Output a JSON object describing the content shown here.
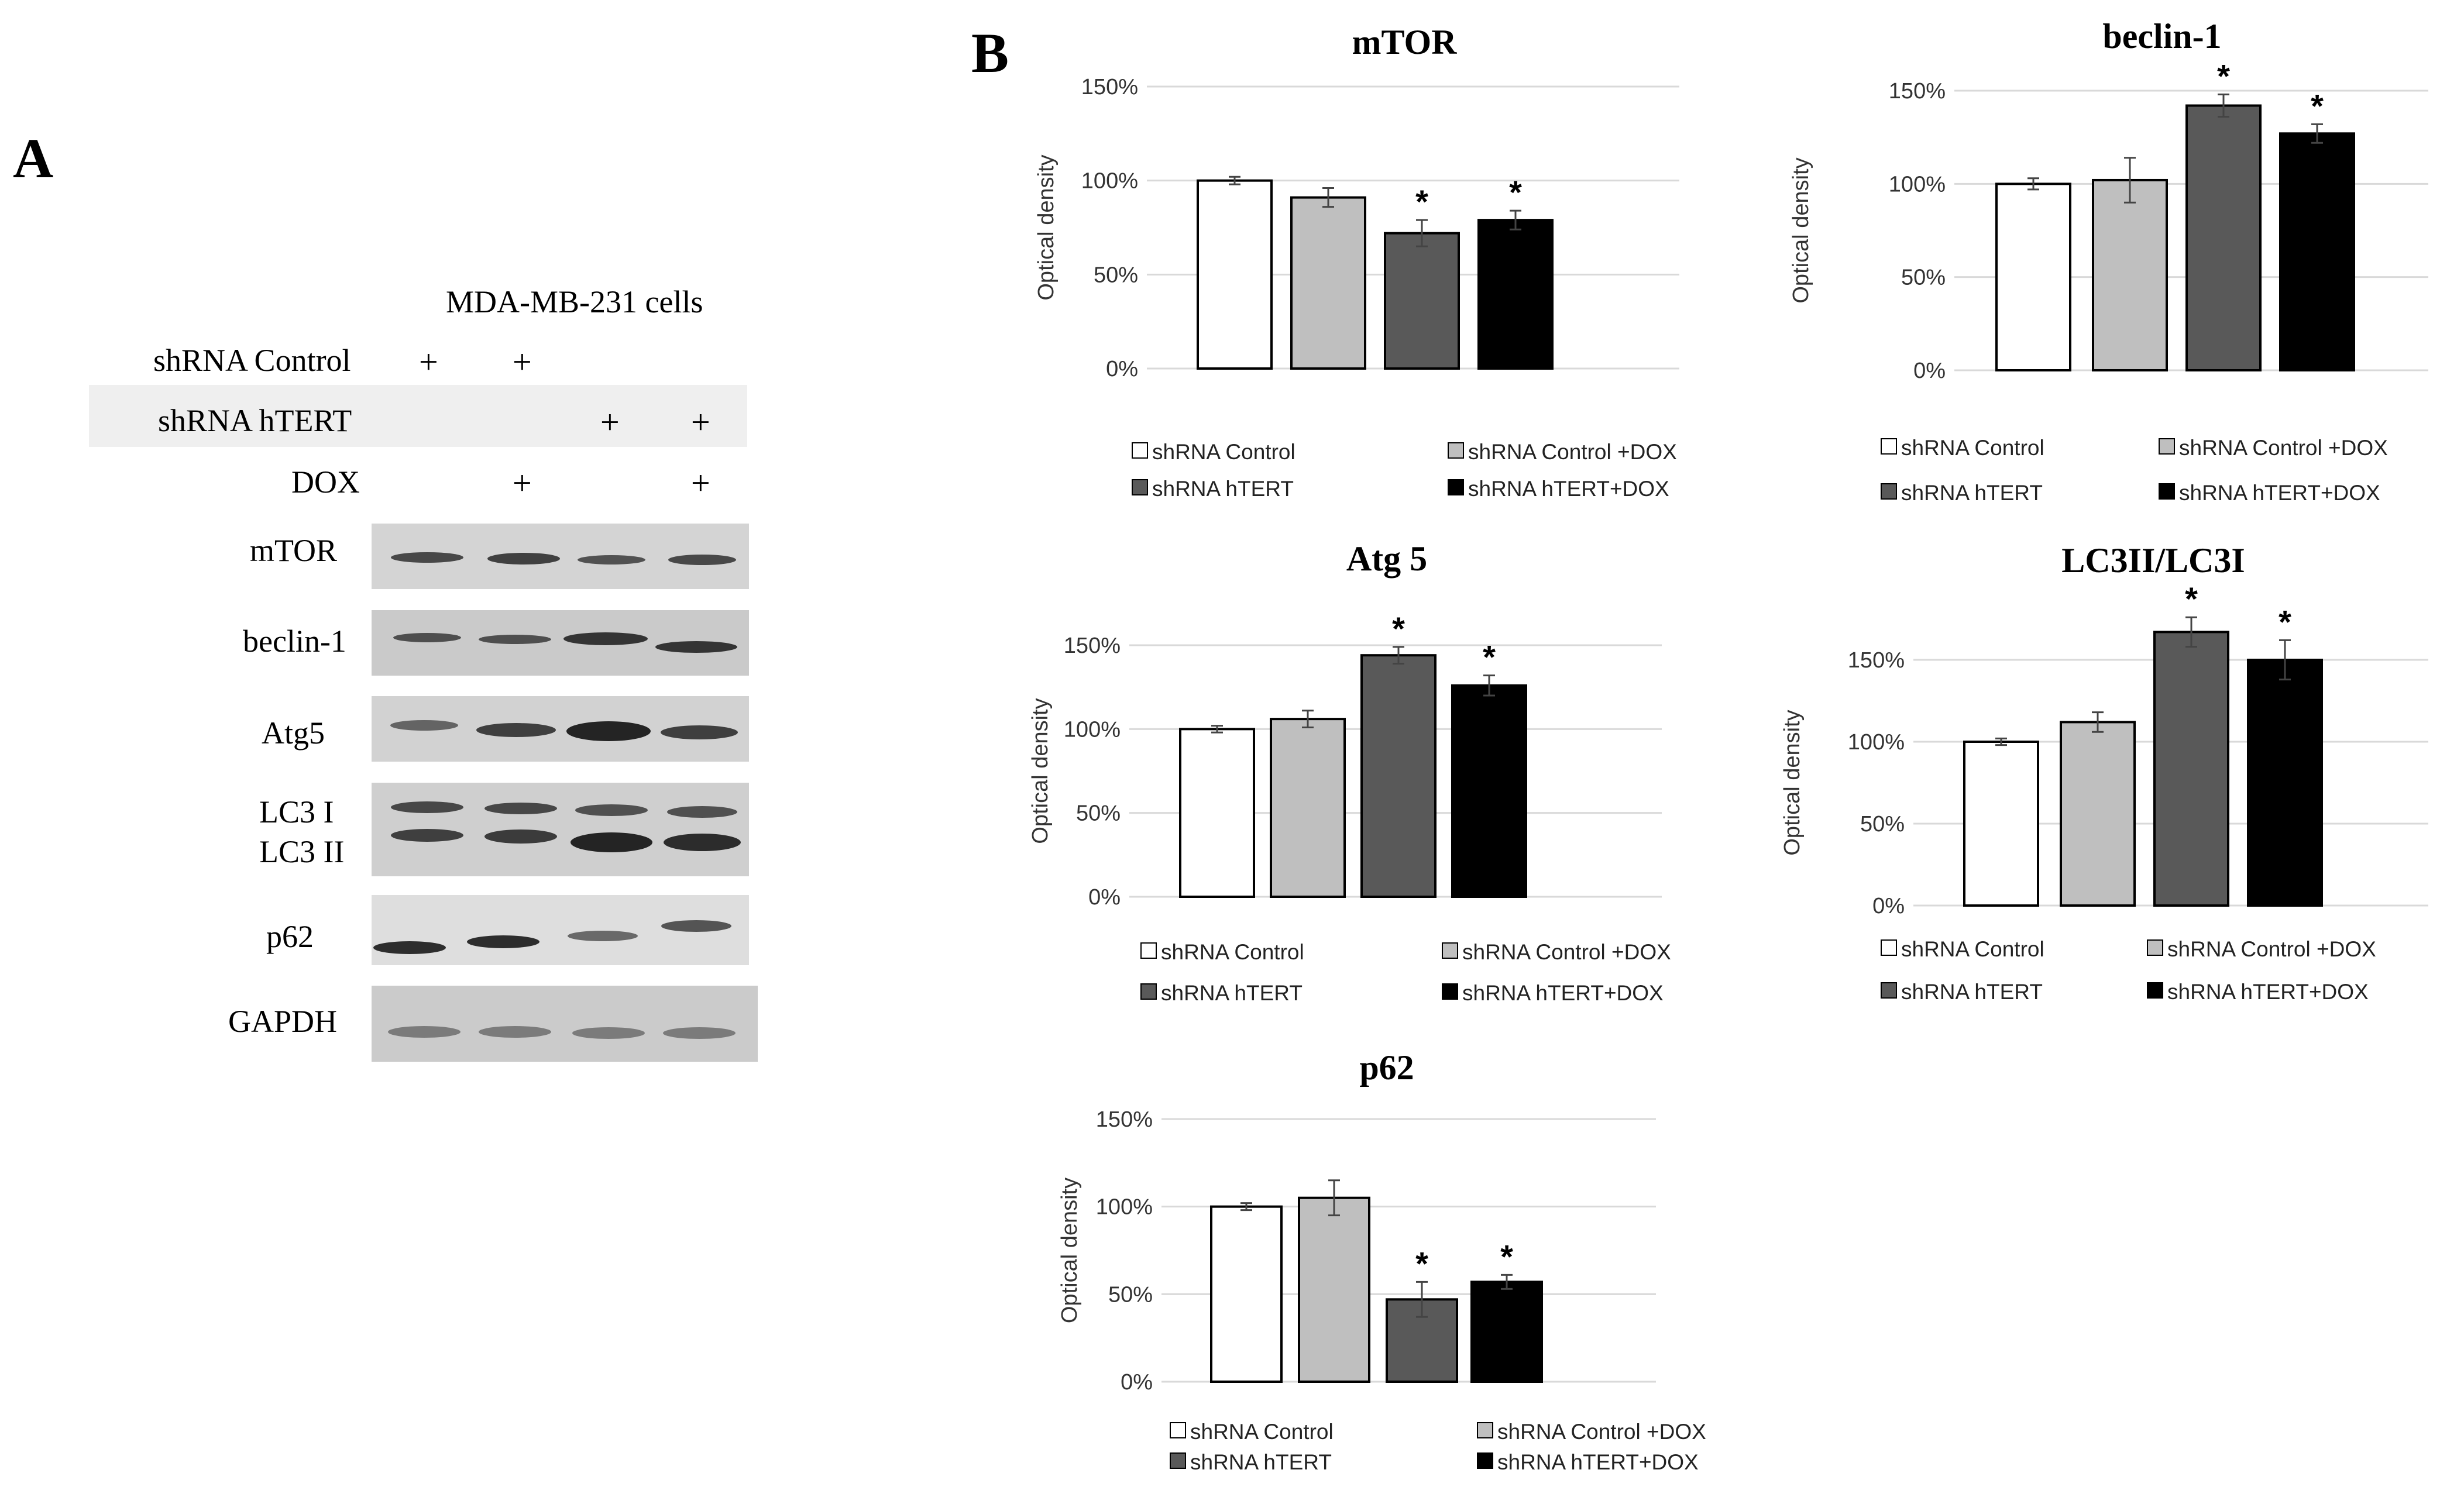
{
  "panel_a": {
    "letter": "A",
    "cell_line": "MDA-MB-231 cells",
    "conditions": [
      {
        "label": "shRNA Control",
        "marks": [
          "+",
          "+",
          "",
          ""
        ]
      },
      {
        "label": "shRNA hTERT",
        "marks": [
          "",
          "",
          "+",
          "+"
        ]
      },
      {
        "label": "DOX",
        "marks": [
          "",
          "+",
          "",
          "+"
        ]
      }
    ],
    "blots": [
      {
        "label": "mTOR"
      },
      {
        "label": "beclin-1"
      },
      {
        "label": "Atg5"
      },
      {
        "label": "LC3 I",
        "label2": "LC3 II"
      },
      {
        "label": "p62"
      },
      {
        "label": "GAPDH"
      }
    ],
    "colors": {
      "band": "#1c1c1c",
      "strip": "#d6d6d6",
      "highlight": "#efefef"
    }
  },
  "panel_b": {
    "letter": "B"
  },
  "chart_data": [
    {
      "type": "bar",
      "title": "mTOR",
      "ylabel": "Optical density",
      "yticks": [
        "0%",
        "50%",
        "100%",
        "150%"
      ],
      "ylim": [
        0,
        150
      ],
      "categories": [
        "shRNA Control",
        "shRNA Control +DOX",
        "shRNA hTERT",
        "shRNA hTERT+DOX"
      ],
      "values": [
        100,
        91,
        72,
        79
      ],
      "errors": [
        2,
        5,
        7,
        5
      ],
      "significance": [
        "",
        "",
        "*",
        "*"
      ],
      "legend": [
        "shRNA Control",
        "shRNA Control +DOX",
        "shRNA hTERT",
        "shRNA hTERT+DOX"
      ],
      "colors": [
        "#ffffff",
        "#bfbfbf",
        "#595959",
        "#000000"
      ]
    },
    {
      "type": "bar",
      "title": "beclin-1",
      "ylabel": "Optical density",
      "yticks": [
        "0%",
        "50%",
        "100%",
        "150%"
      ],
      "ylim": [
        0,
        150
      ],
      "categories": [
        "shRNA Control",
        "shRNA Control +DOX",
        "shRNA hTERT",
        "shRNA hTERT+DOX"
      ],
      "values": [
        100,
        102,
        142,
        127
      ],
      "errors": [
        3,
        12,
        6,
        5
      ],
      "significance": [
        "",
        "",
        "*",
        "*"
      ],
      "legend": [
        "shRNA Control",
        "shRNA Control +DOX",
        "shRNA hTERT",
        "shRNA hTERT+DOX"
      ],
      "colors": [
        "#ffffff",
        "#bfbfbf",
        "#595959",
        "#000000"
      ]
    },
    {
      "type": "bar",
      "title": "Atg 5",
      "ylabel": "Optical density",
      "yticks": [
        "0%",
        "50%",
        "100%",
        "150%"
      ],
      "ylim": [
        0,
        150
      ],
      "categories": [
        "shRNA Control",
        "shRNA Control +DOX",
        "shRNA hTERT",
        "shRNA hTERT+DOX"
      ],
      "values": [
        100,
        106,
        144,
        126
      ],
      "errors": [
        2,
        5,
        5,
        6
      ],
      "significance": [
        "",
        "",
        "*",
        "*"
      ],
      "legend": [
        "shRNA Control",
        "shRNA Control +DOX",
        "shRNA hTERT",
        "shRNA hTERT+DOX"
      ],
      "colors": [
        "#ffffff",
        "#bfbfbf",
        "#595959",
        "#000000"
      ]
    },
    {
      "type": "bar",
      "title": "LC3II/LC3I",
      "ylabel": "Optical density",
      "yticks": [
        "0%",
        "50%",
        "100%",
        "150%"
      ],
      "ylim": [
        0,
        150
      ],
      "categories": [
        "shRNA Control",
        "shRNA Control +DOX",
        "shRNA hTERT",
        "shRNA hTERT+DOX"
      ],
      "values": [
        100,
        112,
        167,
        150
      ],
      "errors": [
        2,
        6,
        9,
        12
      ],
      "significance": [
        "",
        "",
        "*",
        "*"
      ],
      "legend": [
        "shRNA Control",
        "shRNA Control +DOX",
        "shRNA hTERT",
        "shRNA hTERT+DOX"
      ],
      "colors": [
        "#ffffff",
        "#bfbfbf",
        "#595959",
        "#000000"
      ]
    },
    {
      "type": "bar",
      "title": "p62",
      "ylabel": "Optical density",
      "yticks": [
        "0%",
        "50%",
        "100%",
        "150%"
      ],
      "ylim": [
        0,
        150
      ],
      "categories": [
        "shRNA Control",
        "shRNA Control +DOX",
        "shRNA hTERT",
        "shRNA hTERT+DOX"
      ],
      "values": [
        100,
        105,
        47,
        57
      ],
      "errors": [
        2,
        10,
        10,
        4
      ],
      "significance": [
        "",
        "",
        "*",
        "*"
      ],
      "legend": [
        "shRNA Control",
        "shRNA Control +DOX",
        "shRNA hTERT",
        "shRNA hTERT+DOX"
      ],
      "colors": [
        "#ffffff",
        "#bfbfbf",
        "#595959",
        "#000000"
      ]
    }
  ]
}
